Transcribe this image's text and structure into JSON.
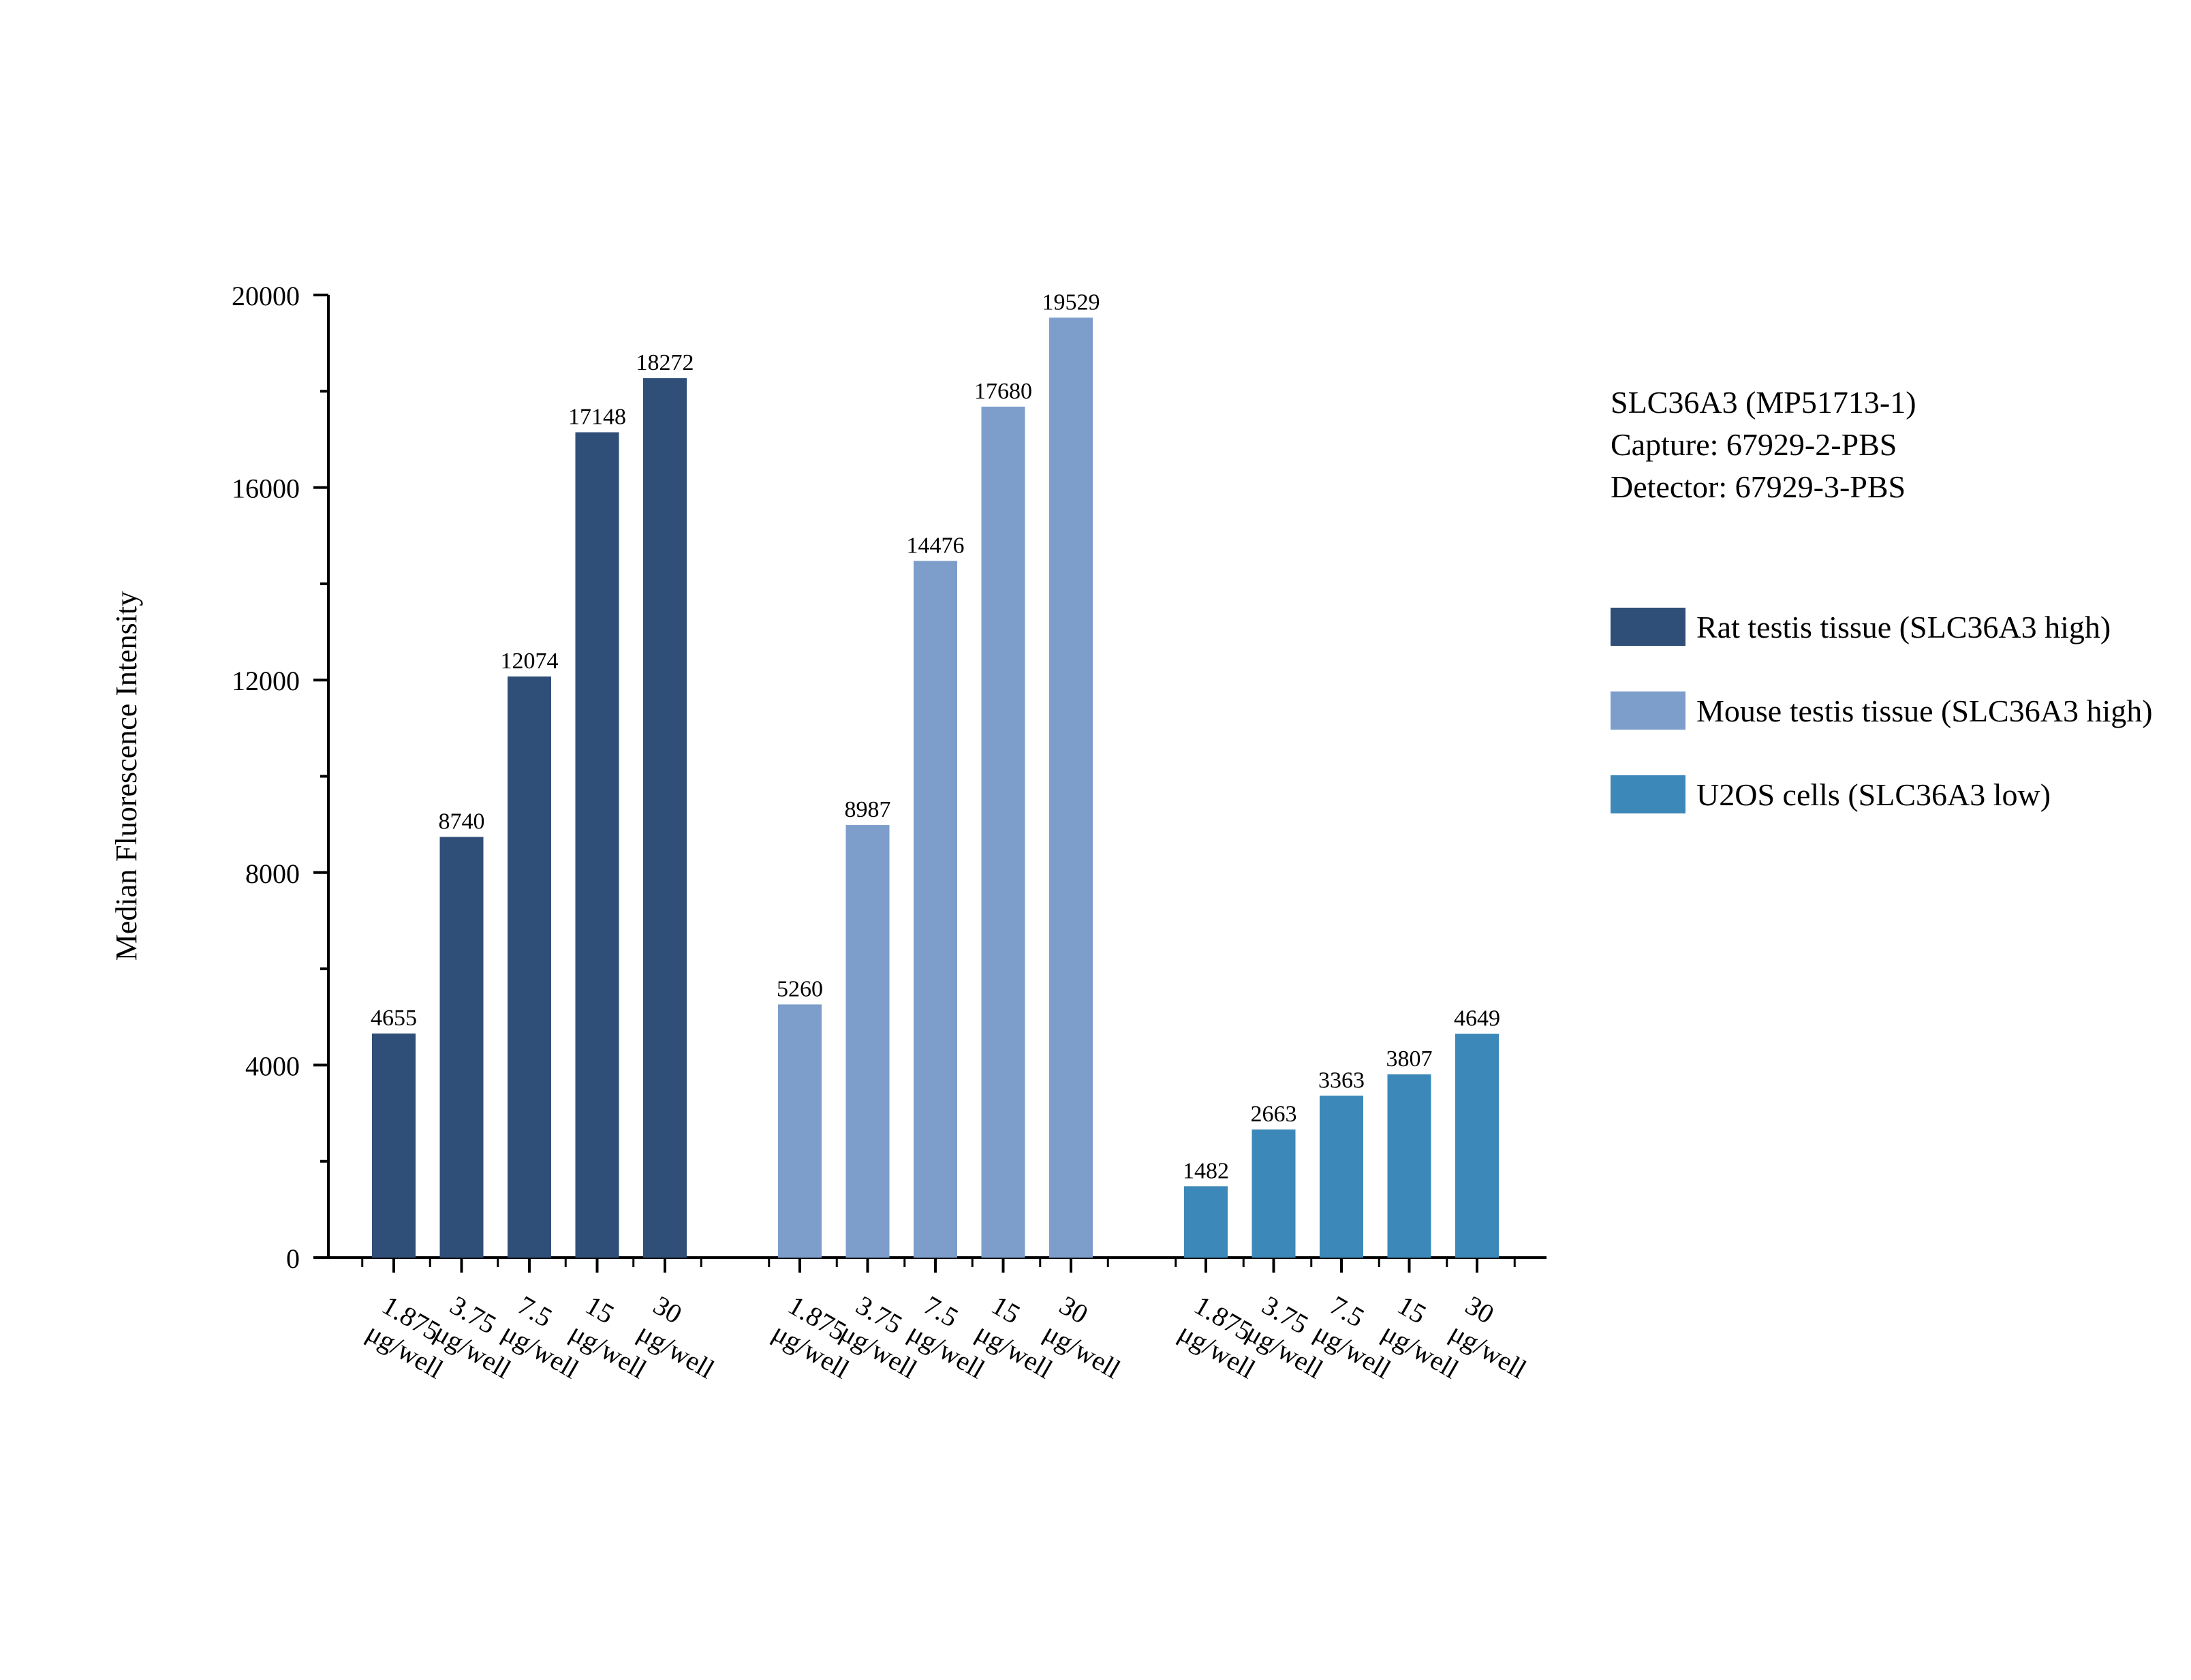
{
  "chart_data": {
    "type": "bar",
    "ylabel": "Median Fluorescence Intensity",
    "ylim": [
      0,
      20000
    ],
    "yticks": [
      0,
      4000,
      8000,
      12000,
      16000,
      20000
    ],
    "categories": [
      "1.875 μg/well",
      "3.75 μg/well",
      "7.5 μg/well",
      "15 μg/well",
      "30 μg/well"
    ],
    "series": [
      {
        "name": "Rat testis tissue (SLC36A3 high)",
        "color": "#2f4e78",
        "values": [
          4655,
          8740,
          12074,
          17148,
          18272
        ]
      },
      {
        "name": "Mouse testis tissue (SLC36A3 high)",
        "color": "#7d9ecb",
        "values": [
          5260,
          8987,
          14476,
          17680,
          19529
        ]
      },
      {
        "name": "U2OS cells (SLC36A3 low)",
        "color": "#3c88b8",
        "values": [
          1482,
          2663,
          3363,
          3807,
          4649
        ]
      }
    ],
    "legend_position": "right",
    "grid": false
  },
  "info": {
    "line1": "SLC36A3 (MP51713-1)",
    "line2": "Capture: 67929-2-PBS",
    "line3": "Detector: 67929-3-PBS"
  }
}
